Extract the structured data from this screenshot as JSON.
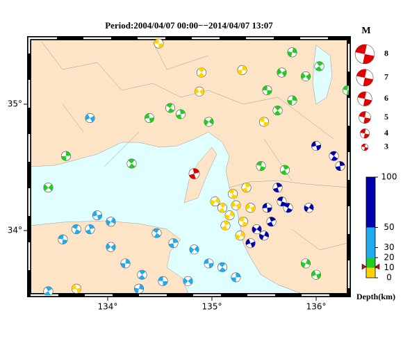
{
  "chart_data": {
    "type": "focal-mechanism-map",
    "title": "Period:2004/04/07 00:00−−2014/04/07 13:07",
    "xlim": [
      133.247,
      136.313
    ],
    "ylim": [
      33.489,
      35.522
    ],
    "xticks": [
      {
        "value": 134,
        "label": "134°"
      },
      {
        "value": 135,
        "label": "135°"
      },
      {
        "value": 136,
        "label": "136°"
      }
    ],
    "yticks": [
      {
        "value": 34,
        "label": "34°"
      },
      {
        "value": 35,
        "label": "35°"
      }
    ],
    "events": {
      "lon": [
        134.49,
        134.9,
        135.29,
        134.88,
        135.5,
        135.1,
        135.17,
        135.23,
        135.3,
        135.13,
        135.27,
        135.37,
        135.2,
        135.33,
        135.03,
        133.7,
        134.6,
        134.7,
        134.97,
        134.4,
        134.23,
        133.6,
        133.43,
        135.53,
        135.63,
        135.77,
        135.9,
        136.3,
        136.03,
        135.77,
        135.67,
        135.47,
        135.7,
        135.9,
        136.0,
        133.7,
        133.83,
        134.03,
        133.9,
        134.47,
        134.63,
        134.83,
        134.97,
        135.1,
        135.23,
        134.77,
        134.53,
        134.33,
        134.17,
        134.03,
        133.57,
        133.43,
        134.3,
        133.83,
        135.67,
        135.57,
        135.5,
        135.37,
        135.73,
        135.63,
        135.93,
        136.0,
        136.17,
        136.23,
        135.43,
        135.53
      ],
      "lat": [
        35.48,
        35.25,
        35.27,
        35.1,
        34.86,
        34.18,
        34.12,
        34.2,
        34.07,
        34.04,
        33.96,
        34.18,
        34.29,
        34.34,
        34.23,
        33.54,
        34.97,
        34.92,
        34.86,
        34.89,
        34.53,
        34.59,
        34.34,
        35.11,
        34.95,
        35.03,
        35.22,
        35.11,
        35.3,
        35.41,
        35.25,
        34.51,
        34.48,
        33.74,
        33.65,
        34.01,
        34.01,
        34.07,
        34.12,
        33.98,
        33.9,
        33.85,
        33.74,
        33.71,
        33.63,
        33.6,
        33.6,
        33.65,
        33.74,
        33.87,
        33.93,
        33.52,
        33.54,
        34.89,
        34.23,
        34.07,
        33.96,
        33.9,
        34.18,
        34.34,
        34.18,
        34.67,
        34.59,
        34.51,
        34.01,
        34.18
      ],
      "depth": [
        5,
        5,
        5,
        5,
        5,
        5,
        5,
        5,
        5,
        5,
        5,
        5,
        5,
        5,
        5,
        5,
        15,
        15,
        15,
        15,
        15,
        15,
        15,
        15,
        15,
        15,
        15,
        15,
        15,
        15,
        15,
        15,
        15,
        15,
        15,
        35,
        35,
        35,
        35,
        35,
        35,
        35,
        35,
        35,
        35,
        35,
        35,
        35,
        35,
        35,
        35,
        35,
        35,
        35,
        70,
        70,
        70,
        70,
        70,
        70,
        70,
        70,
        70,
        70,
        70,
        70
      ],
      "mag": [
        4,
        4,
        4,
        4,
        4,
        4,
        4,
        4,
        4,
        4,
        4,
        4,
        4,
        4,
        4,
        4,
        4,
        4,
        4,
        4,
        4,
        4,
        4,
        4,
        4,
        4,
        4,
        4,
        4,
        4,
        4,
        4,
        4,
        4,
        4,
        4,
        4,
        4,
        4,
        4,
        4,
        4,
        4,
        4,
        4,
        4,
        4,
        4,
        4,
        4,
        4,
        4,
        4,
        4,
        4,
        4,
        4,
        4,
        4,
        4,
        4,
        4,
        4,
        4,
        4,
        4
      ]
    },
    "highlight_event": {
      "lon": 134.83,
      "lat": 34.45,
      "depth": 11,
      "mag": 4.5,
      "color": "#e00000"
    },
    "magnitude_legend": {
      "title": "M",
      "values": [
        8,
        7,
        6,
        5,
        4,
        3
      ],
      "color": "#e00000"
    },
    "depth_scale": {
      "label": "Depth(km)",
      "lim": [
        0,
        100
      ],
      "ticks": [
        0,
        10,
        20,
        30,
        50,
        100
      ],
      "band_colors": [
        "#ffd400",
        "#22cc22",
        "#22aaee",
        "#22aaee",
        "#0000aa"
      ]
    }
  }
}
